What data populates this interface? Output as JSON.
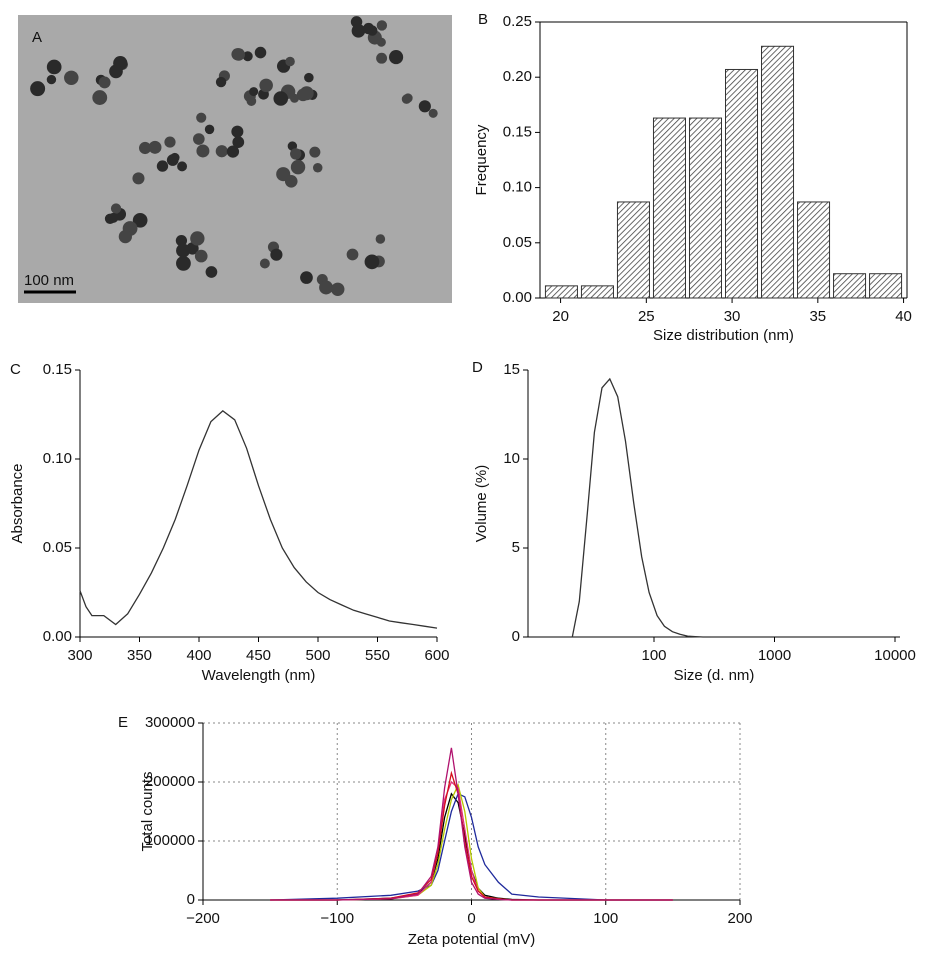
{
  "panel_a": {
    "label": "A",
    "scale_bar": "100 nm"
  },
  "chart_data": [
    {
      "type": "histogram",
      "label": "B",
      "xlabel": "Size distribution (nm)",
      "ylabel": "Frequency",
      "color": "#333333",
      "bins": [
        19,
        21.1,
        23.2,
        25.3,
        27.4,
        29.5,
        31.6,
        33.7,
        35.8,
        37.9,
        40
      ],
      "values": [
        0.011,
        0.011,
        0.087,
        0.163,
        0.163,
        0.207,
        0.228,
        0.087,
        0.022,
        0.022
      ],
      "xlim": [
        18.8,
        40.2
      ],
      "xticks": [
        20,
        25,
        30,
        35,
        40
      ],
      "ylim": [
        0,
        0.25
      ],
      "yticks": [
        {
          "value": 0,
          "label": "0.00"
        },
        {
          "value": 0.05,
          "label": "0.05"
        },
        {
          "value": 0.1,
          "label": "0.10"
        },
        {
          "value": 0.15,
          "label": "0.15"
        },
        {
          "value": 0.2,
          "label": "0.20"
        },
        {
          "value": 0.25,
          "label": "0.25"
        }
      ]
    },
    {
      "type": "line",
      "label": "C",
      "xlabel": "Wavelength (nm)",
      "ylabel": "Absorbance",
      "color": "#333333",
      "x": [
        300,
        305,
        310,
        320,
        330,
        340,
        350,
        360,
        370,
        380,
        390,
        400,
        410,
        420,
        430,
        440,
        450,
        460,
        470,
        480,
        490,
        500,
        510,
        520,
        530,
        540,
        550,
        560,
        570,
        580,
        590,
        600
      ],
      "values": [
        0.026,
        0.017,
        0.012,
        0.012,
        0.007,
        0.013,
        0.024,
        0.036,
        0.05,
        0.066,
        0.085,
        0.105,
        0.121,
        0.127,
        0.122,
        0.106,
        0.085,
        0.066,
        0.05,
        0.039,
        0.031,
        0.025,
        0.021,
        0.018,
        0.015,
        0.013,
        0.011,
        0.009,
        0.008,
        0.007,
        0.006,
        0.005
      ],
      "xlim": [
        300,
        600
      ],
      "xticks": [
        300,
        350,
        400,
        450,
        500,
        550,
        600
      ],
      "ylim": [
        0,
        0.15
      ],
      "yticks": [
        {
          "value": 0,
          "label": "0.00"
        },
        {
          "value": 0.05,
          "label": "0.05"
        },
        {
          "value": 0.1,
          "label": "0.10"
        },
        {
          "value": 0.15,
          "label": "0.15"
        }
      ]
    },
    {
      "type": "line",
      "label": "D",
      "xlabel": "Size (d. nm)",
      "ylabel": "Volume (%)",
      "color": "#333333",
      "log_x": true,
      "x": [
        21,
        24,
        28,
        32,
        37,
        43,
        50,
        58,
        68,
        79,
        91,
        106,
        122,
        142,
        164,
        190,
        220,
        255,
        295
      ],
      "values": [
        0,
        2,
        7,
        11.5,
        14,
        14.5,
        13.5,
        11,
        7.5,
        4.5,
        2.5,
        1.2,
        0.6,
        0.3,
        0.15,
        0.05,
        0.02,
        0,
        0
      ],
      "xlim": [
        9,
        11000
      ],
      "xticks": [
        100,
        1000,
        10000
      ],
      "ylim": [
        0,
        15
      ],
      "yticks": [
        0,
        5,
        10,
        15
      ]
    },
    {
      "type": "line",
      "label": "E",
      "xlabel": "Zeta potential (mV)",
      "ylabel": "Total counts",
      "grid": true,
      "x": [
        -150,
        -100,
        -60,
        -40,
        -30,
        -25,
        -20,
        -15,
        -10,
        -5,
        0,
        5,
        10,
        20,
        30,
        50,
        100,
        150
      ],
      "series": [
        {
          "color": "#000000",
          "values": [
            0,
            0,
            3000,
            10000,
            30000,
            70000,
            140000,
            180000,
            165000,
            110000,
            50000,
            20000,
            8000,
            3000,
            1000,
            0,
            0,
            0
          ]
        },
        {
          "color": "#1f2a9c",
          "values": [
            0,
            3000,
            8000,
            15000,
            25000,
            50000,
            100000,
            150000,
            180000,
            175000,
            140000,
            90000,
            60000,
            30000,
            10000,
            5000,
            0,
            0
          ]
        },
        {
          "color": "#b5c800",
          "values": [
            0,
            0,
            2000,
            8000,
            25000,
            60000,
            120000,
            170000,
            195000,
            150000,
            70000,
            20000,
            5000,
            2000,
            0,
            0,
            0,
            0
          ]
        },
        {
          "color": "#e0307a",
          "values": [
            0,
            0,
            2000,
            8000,
            30000,
            80000,
            170000,
            200000,
            190000,
            120000,
            50000,
            15000,
            5000,
            1000,
            0,
            0,
            0,
            0
          ]
        },
        {
          "color": "#d40f1c",
          "values": [
            0,
            0,
            3000,
            12000,
            35000,
            80000,
            160000,
            215000,
            180000,
            100000,
            40000,
            15000,
            5000,
            2000,
            0,
            0,
            0,
            0
          ]
        },
        {
          "color": "#b0126e",
          "values": [
            0,
            0,
            2000,
            10000,
            40000,
            90000,
            190000,
            258000,
            180000,
            90000,
            30000,
            10000,
            3000,
            1000,
            0,
            0,
            0,
            0
          ]
        }
      ],
      "xlim": [
        -200,
        200
      ],
      "xticks": [
        {
          "value": -200,
          "label": "−200"
        },
        {
          "value": -100,
          "label": "−100"
        },
        0,
        100,
        200
      ],
      "ylim": [
        0,
        300000
      ],
      "yticks": [
        0,
        100000,
        200000,
        300000
      ]
    }
  ]
}
